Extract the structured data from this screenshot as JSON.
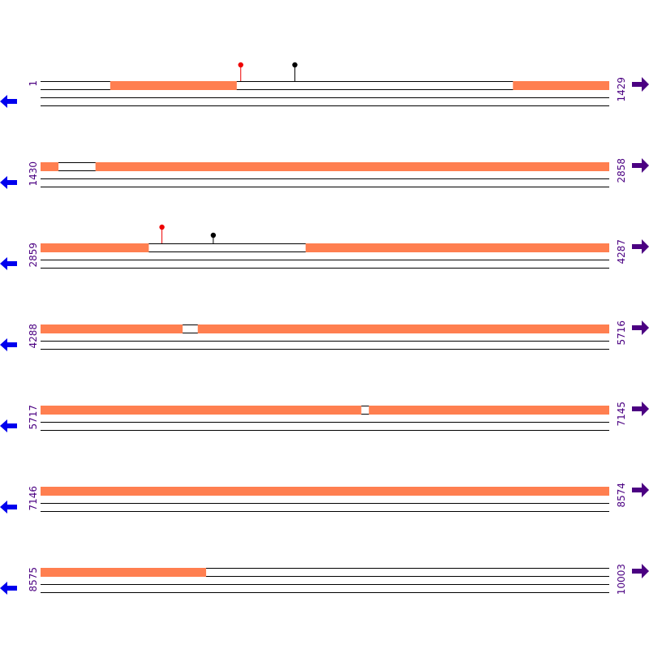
{
  "colors": {
    "feature": "#ff7f50",
    "line": "#000000",
    "left_arrow": "#0000ee",
    "right_arrow": "#4b0082",
    "label": "#4b0082",
    "marker_red": "#ee0000",
    "marker_black": "#000000"
  },
  "icons": {
    "left": "left-arrow-icon",
    "right": "right-arrow-icon",
    "marker": "lollipop-marker-icon"
  },
  "rows": [
    {
      "start": 1,
      "end": 1429,
      "start_label": "1",
      "end_label": "1429",
      "features": [
        [
          176,
          493
        ],
        [
          1188,
          1429
        ]
      ],
      "markers": [
        {
          "pos": 504,
          "color": "red"
        },
        {
          "pos": 640,
          "color": "black"
        }
      ]
    },
    {
      "start": 1430,
      "end": 2858,
      "start_label": "1430",
      "end_label": "2858",
      "features": [
        [
          1430,
          1474
        ],
        [
          1568,
          2858
        ]
      ],
      "markers": []
    },
    {
      "start": 2859,
      "end": 4287,
      "start_label": "2859",
      "end_label": "4287",
      "features": [
        [
          2859,
          3130
        ],
        [
          3525,
          4287
        ]
      ],
      "markers": [
        {
          "pos": 3164,
          "color": "red"
        },
        {
          "pos": 3293,
          "color": "black"
        }
      ]
    },
    {
      "start": 4288,
      "end": 5716,
      "start_label": "4288",
      "end_label": "5716",
      "features": [
        [
          4288,
          4644
        ],
        [
          4683,
          5716
        ]
      ],
      "markers": []
    },
    {
      "start": 5717,
      "end": 7145,
      "start_label": "5717",
      "end_label": "7145",
      "features": [
        [
          5717,
          6522
        ],
        [
          6542,
          7145
        ]
      ],
      "markers": []
    },
    {
      "start": 7146,
      "end": 8574,
      "start_label": "7146",
      "end_label": "8574",
      "features": [
        [
          7146,
          8574
        ]
      ],
      "markers": []
    },
    {
      "start": 8575,
      "end": 10003,
      "start_label": "8575",
      "end_label": "10003",
      "features": [
        [
          8575,
          8990
        ]
      ],
      "markers": []
    }
  ]
}
